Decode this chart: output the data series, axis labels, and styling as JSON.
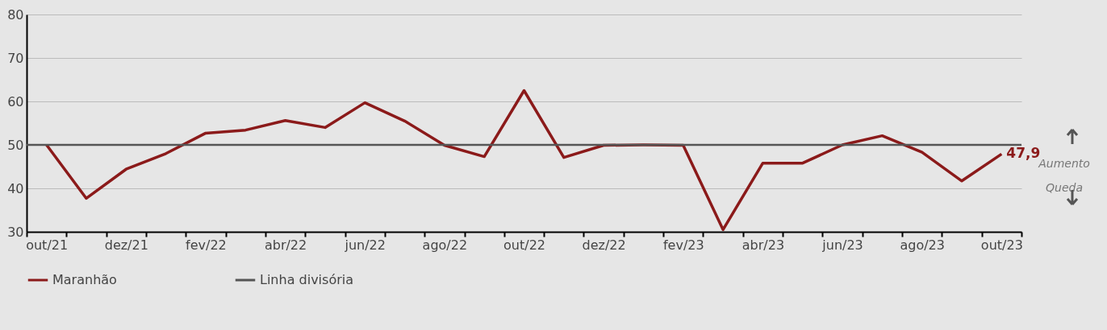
{
  "chart_data": {
    "type": "line",
    "categories": [
      "out/21",
      null,
      "dez/21",
      null,
      "fev/22",
      null,
      "abr/22",
      null,
      "jun/22",
      null,
      "ago/22",
      null,
      "out/22",
      null,
      "dez/22",
      null,
      "fev/23",
      null,
      "abr/23",
      null,
      "jun/23",
      null,
      "ago/23",
      null,
      "out/23"
    ],
    "series": [
      {
        "name": "Maranhão",
        "color": "#8b1a1a",
        "values": [
          50.0,
          37.7,
          44.4,
          48.0,
          52.7,
          53.4,
          55.6,
          54.0,
          59.7,
          55.5,
          49.9,
          47.3,
          62.5,
          47.1,
          49.9,
          50.0,
          49.9,
          30.5,
          45.8,
          45.8,
          50.0,
          52.1,
          48.3,
          41.7,
          47.9
        ],
        "value_labels": [
          null,
          null,
          null,
          null,
          null,
          null,
          null,
          null,
          null,
          null,
          null,
          null,
          null,
          null,
          null,
          null,
          null,
          null,
          null,
          null,
          null,
          null,
          null,
          null,
          "47,9"
        ]
      }
    ],
    "ref_lines": [
      {
        "axis": "y",
        "value": 50,
        "label": "Linha divisória",
        "color": "#555555"
      }
    ],
    "annotations": [
      "Aumento",
      "Queda"
    ],
    "ylim": [
      30,
      80
    ],
    "yticks": [
      30,
      40,
      50,
      60,
      70,
      80
    ],
    "grid": "y",
    "legend": "bottom",
    "line_style": "solid",
    "marker": "none"
  }
}
